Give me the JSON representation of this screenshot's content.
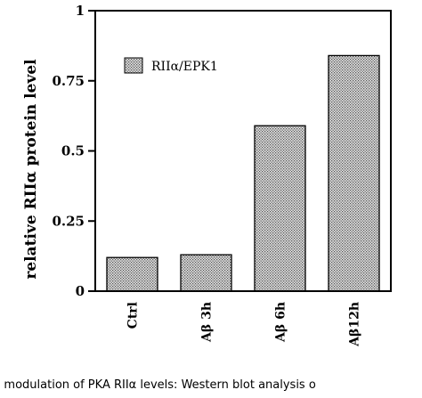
{
  "chart_data": {
    "type": "bar",
    "categories": [
      "Ctrl",
      "Aβ 3h",
      "Aβ 6h",
      "Aβ12h"
    ],
    "series": [
      {
        "name": "RIIα/EPK1",
        "values": [
          0.12,
          0.13,
          0.59,
          0.84
        ],
        "fill": "#d8d8d8",
        "pattern": "dotted"
      }
    ],
    "ylabel": "relative RIIα protein level",
    "xlabel": "",
    "ylim": [
      0,
      1
    ],
    "yticks": [
      0,
      0.25,
      0.5,
      0.75,
      1
    ],
    "ytick_labels": [
      "0",
      "0.25",
      "0.5",
      "0.75",
      "1"
    ],
    "legend_position": "top-left",
    "grid": false
  },
  "caption": "β modulation of PKA RIIα levels: Western blot analysis o"
}
